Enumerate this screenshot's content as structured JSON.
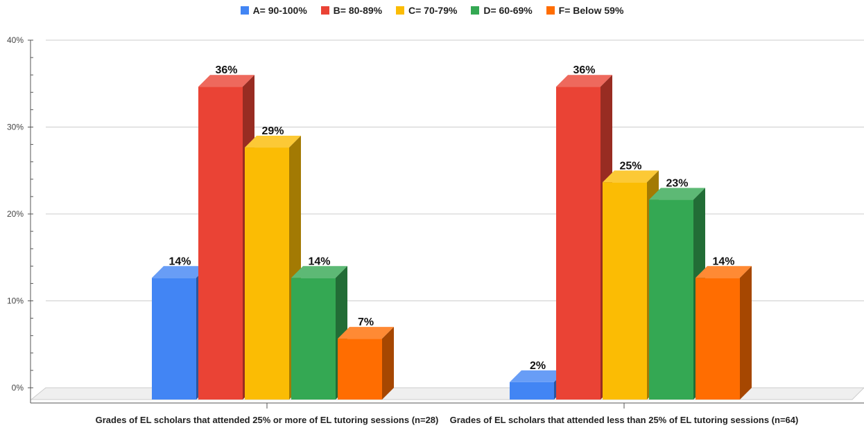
{
  "chart_data": {
    "type": "bar",
    "categories": [
      "Grades of EL scholars that attended 25% or more of EL tutoring sessions (n=28)",
      "Grades of EL scholars that attended less than 25% of EL tutoring sessions (n=64)"
    ],
    "series": [
      {
        "name": "A= 90-100%",
        "color": "#4285f4",
        "values": [
          14,
          2
        ]
      },
      {
        "name": "B= 80-89%",
        "color": "#ea4335",
        "values": [
          36,
          36
        ]
      },
      {
        "name": "C= 70-79%",
        "color": "#fbbc04",
        "values": [
          29,
          25
        ]
      },
      {
        "name": "D= 60-69%",
        "color": "#34a853",
        "values": [
          14,
          23
        ]
      },
      {
        "name": "F= Below 59%",
        "color": "#ff6d01",
        "values": [
          7,
          14
        ]
      }
    ],
    "data_labels": [
      [
        "14%",
        "36%",
        "29%",
        "14%",
        "7%"
      ],
      [
        "2%",
        "36%",
        "25%",
        "23%",
        "14%"
      ]
    ],
    "yticks": [
      "0%",
      "10%",
      "20%",
      "30%",
      "40%"
    ],
    "ylim": [
      0,
      40
    ],
    "grid": true,
    "legend_position": "top",
    "style": "3d"
  }
}
